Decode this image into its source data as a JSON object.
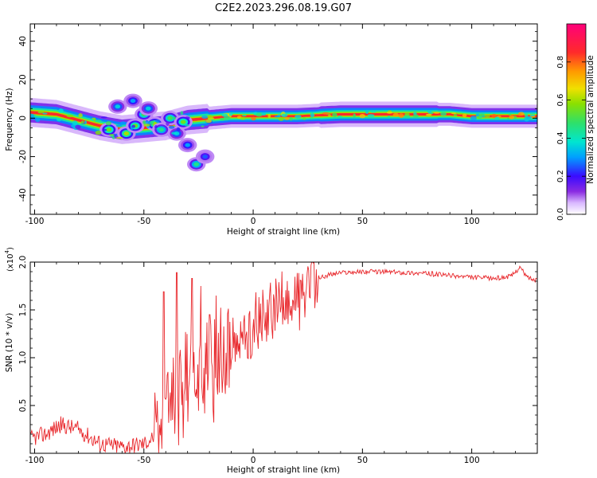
{
  "title": "C2E2.2023.296.08.19.G07",
  "colors": {
    "line": "#e8262a",
    "axis": "#000000"
  },
  "chart_data": [
    {
      "type": "heatmap",
      "xlabel": "Height of straight line (km)",
      "ylabel": "Frequency (Hz)",
      "xlim": [
        -102,
        130
      ],
      "ylim": [
        -50,
        49
      ],
      "xticks": [
        -100,
        -50,
        0,
        50,
        100
      ],
      "yticks": [
        -40,
        -20,
        0,
        20,
        40
      ],
      "ridge": [
        [
          -102,
          3
        ],
        [
          -90,
          2
        ],
        [
          -80,
          -1
        ],
        [
          -70,
          -4
        ],
        [
          -60,
          -6
        ],
        [
          -50,
          -5
        ],
        [
          -40,
          -4
        ],
        [
          -30,
          -1
        ],
        [
          -20,
          0
        ],
        [
          -10,
          1
        ],
        [
          0,
          1
        ],
        [
          20,
          1
        ],
        [
          40,
          2
        ],
        [
          80,
          2
        ],
        [
          90,
          2
        ],
        [
          100,
          1
        ],
        [
          110,
          1
        ],
        [
          120,
          1
        ],
        [
          130,
          1
        ]
      ],
      "blobs": [
        [
          -66,
          -6,
          0.55
        ],
        [
          -58,
          -8,
          0.6
        ],
        [
          -50,
          2,
          0.5
        ],
        [
          -45,
          -3,
          0.6
        ],
        [
          -38,
          0,
          0.5
        ],
        [
          -32,
          -2,
          0.55
        ],
        [
          -26,
          -24,
          0.45
        ],
        [
          -62,
          6,
          0.35
        ],
        [
          -55,
          9,
          0.3
        ],
        [
          -48,
          5,
          0.35
        ],
        [
          -35,
          -8,
          0.35
        ],
        [
          -30,
          -14,
          0.3
        ],
        [
          -22,
          -20,
          0.25
        ],
        [
          -42,
          -6,
          0.45
        ],
        [
          -54,
          -4,
          0.55
        ]
      ],
      "colorbar": {
        "label": "Normalized spectral amplitude",
        "ticks": [
          0.0,
          0.2,
          0.4,
          0.6,
          0.8
        ],
        "range": [
          0,
          1
        ]
      }
    },
    {
      "type": "line",
      "xlabel": "Height of straight line (km)",
      "ylabel": "SNR (10 * v/v)",
      "y_multiplier": "(x10",
      "y_multiplier_exp": "4",
      "y_multiplier_close": ")",
      "xlim": [
        -102,
        130
      ],
      "ylim": [
        0,
        2.0
      ],
      "xticks": [
        -100,
        -50,
        0,
        50,
        100
      ],
      "yticks": [
        0.5,
        1.0,
        1.5,
        2.0
      ],
      "envelope": [
        [
          -102,
          0.15
        ],
        [
          -95,
          0.2
        ],
        [
          -88,
          0.3
        ],
        [
          -80,
          0.25
        ],
        [
          -70,
          0.1
        ],
        [
          -60,
          0.07
        ],
        [
          -50,
          0.1
        ],
        [
          -45,
          0.18
        ],
        [
          -40,
          0.4
        ],
        [
          -35,
          0.7
        ],
        [
          -30,
          0.85
        ],
        [
          -25,
          0.9
        ],
        [
          -20,
          0.95
        ],
        [
          -15,
          1.0
        ],
        [
          -10,
          1.1
        ],
        [
          -5,
          1.25
        ],
        [
          0,
          1.35
        ],
        [
          5,
          1.45
        ],
        [
          10,
          1.55
        ],
        [
          15,
          1.62
        ],
        [
          20,
          1.7
        ],
        [
          25,
          1.75
        ],
        [
          30,
          1.83
        ],
        [
          35,
          1.87
        ],
        [
          40,
          1.89
        ],
        [
          50,
          1.9
        ],
        [
          60,
          1.9
        ],
        [
          70,
          1.89
        ],
        [
          80,
          1.88
        ],
        [
          90,
          1.86
        ],
        [
          100,
          1.84
        ],
        [
          110,
          1.83
        ],
        [
          118,
          1.85
        ],
        [
          122,
          1.95
        ],
        [
          125,
          1.85
        ],
        [
          130,
          1.8
        ]
      ],
      "spikes": [
        [
          -41,
          1.69
        ],
        [
          -35,
          1.89
        ],
        [
          -28,
          1.83
        ],
        [
          -24,
          1.75
        ],
        [
          -20,
          1.45
        ],
        [
          -17,
          1.65
        ]
      ]
    }
  ]
}
